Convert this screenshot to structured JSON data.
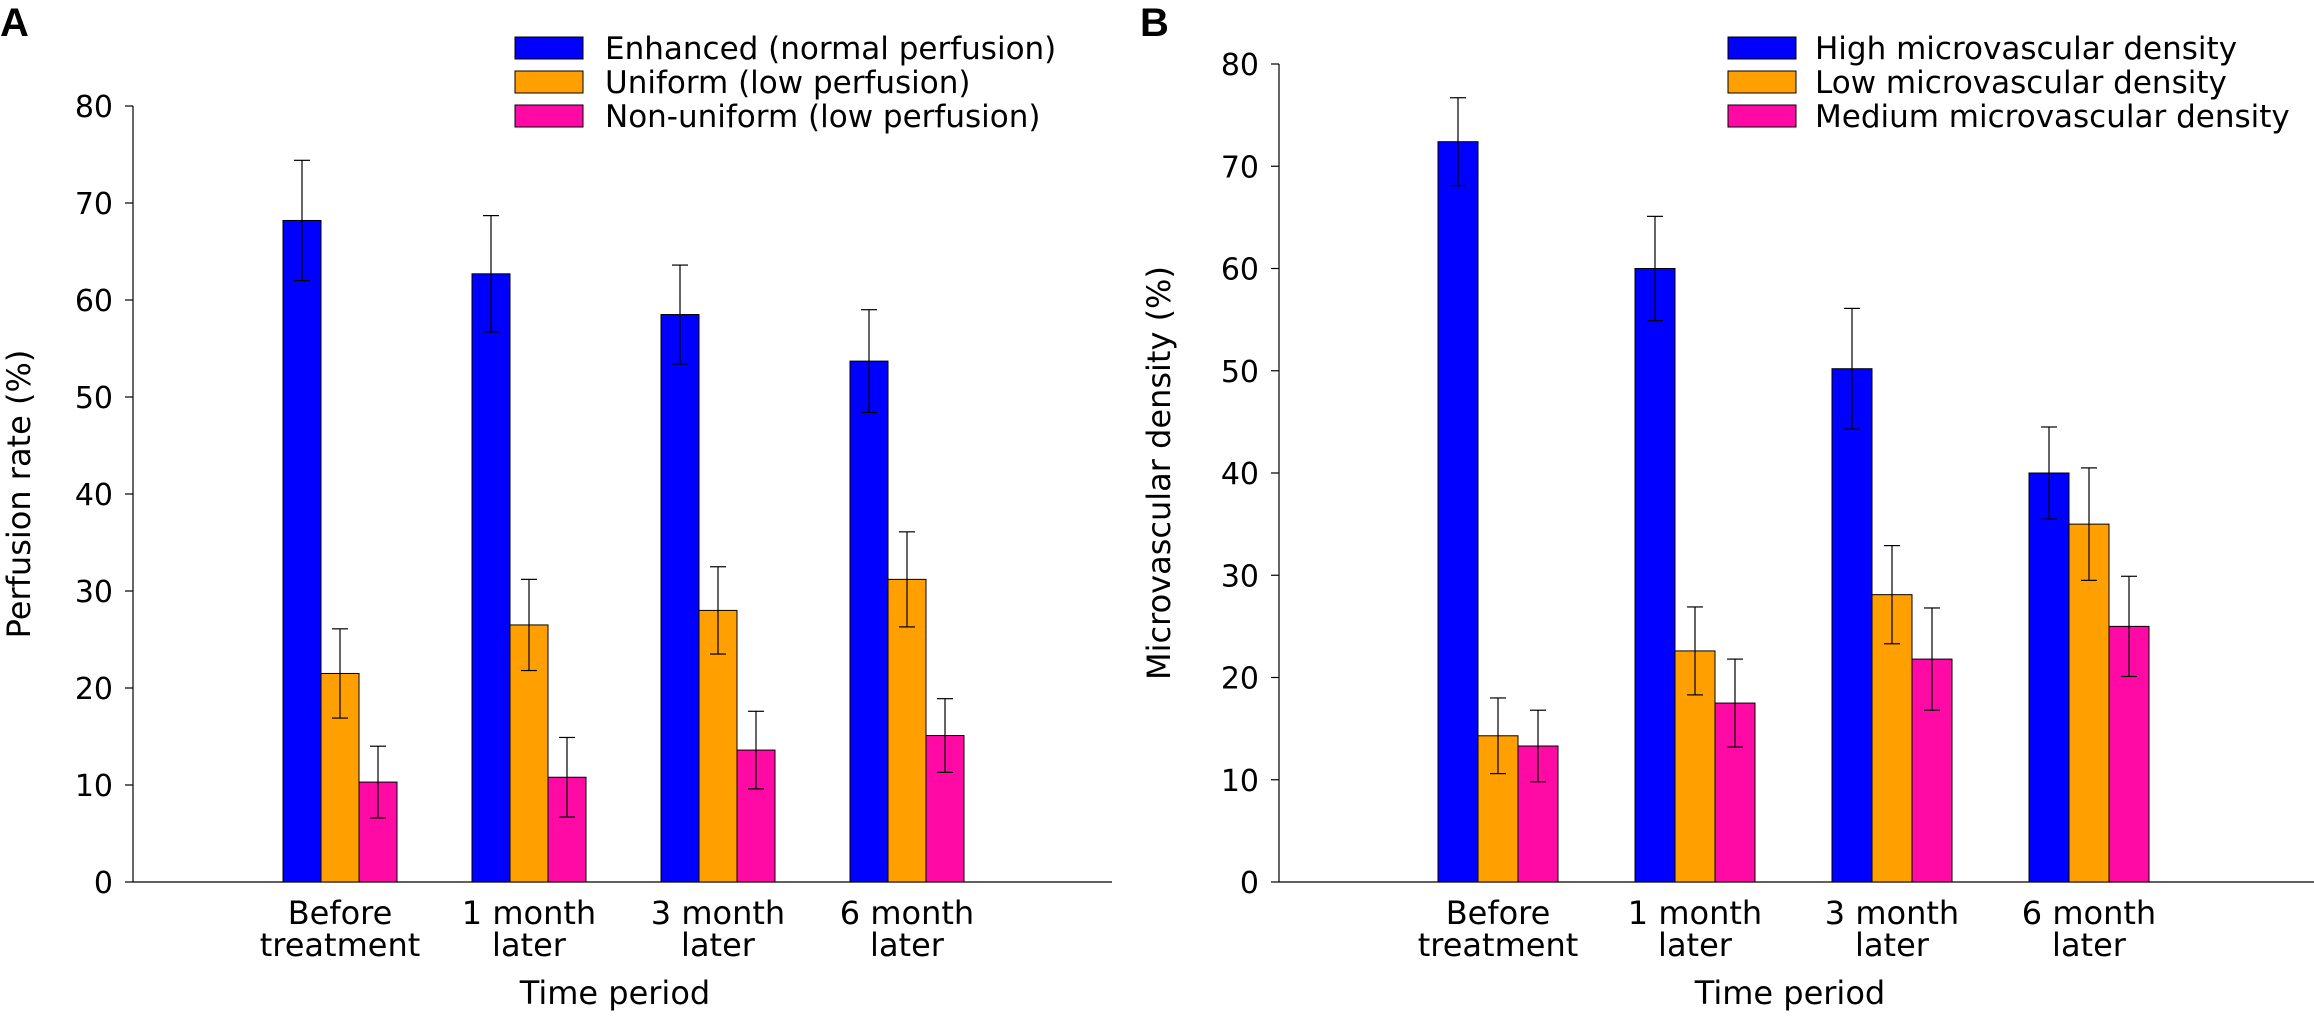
{
  "panels": [
    {
      "letter": "A",
      "chart_data": {
        "type": "bar",
        "categories": [
          [
            "Before",
            "treatment"
          ],
          [
            "1 month",
            "later"
          ],
          [
            "3 month",
            "later"
          ],
          [
            "6 month",
            "later"
          ]
        ],
        "series": [
          {
            "name": "Enhanced (normal perfusion)",
            "color": "#0000ff",
            "values": [
              68.2,
              62.7,
              58.5,
              53.7
            ],
            "errors": [
              6.2,
              6.0,
              5.1,
              5.3
            ]
          },
          {
            "name": "Uniform (low perfusion)",
            "color": "#ffa000",
            "values": [
              21.5,
              26.5,
              28.0,
              31.2
            ],
            "errors": [
              4.6,
              4.7,
              4.5,
              4.9
            ]
          },
          {
            "name": "Non-uniform (low perfusion)",
            "color": "#ff0aa5",
            "values": [
              10.3,
              10.8,
              13.6,
              15.1
            ],
            "errors": [
              3.7,
              4.1,
              4.0,
              3.8
            ]
          }
        ],
        "xlabel": "Time period",
        "ylabel": "Perfusion rate (%)",
        "ylim": [
          0,
          80
        ],
        "yticks": [
          0,
          10,
          20,
          30,
          40,
          50,
          60,
          70,
          80
        ],
        "grid": false,
        "legend": "top-right"
      }
    },
    {
      "letter": "B",
      "chart_data": {
        "type": "bar",
        "categories": [
          [
            "Before",
            "treatment"
          ],
          [
            "1 month",
            "later"
          ],
          [
            "3 month",
            "later"
          ],
          [
            "6 month",
            "later"
          ]
        ],
        "series": [
          {
            "name": "High microvascular density",
            "color": "#0000ff",
            "values": [
              72.4,
              60.0,
              50.2,
              40.0
            ],
            "errors": [
              4.3,
              5.1,
              5.9,
              4.5
            ]
          },
          {
            "name": "Low microvascular density",
            "color": "#ffa000",
            "values": [
              14.3,
              22.6,
              28.1,
              35.0
            ],
            "errors": [
              3.7,
              4.3,
              4.8,
              5.5
            ]
          },
          {
            "name": "Medium microvascular density",
            "color": "#ff0aa5",
            "values": [
              13.3,
              17.5,
              21.8,
              25.0
            ],
            "errors": [
              3.5,
              4.3,
              5.0,
              4.9
            ]
          }
        ],
        "xlabel": "Time period",
        "ylabel": "Microvascular density (%)",
        "ylim": [
          0,
          80
        ],
        "yticks": [
          0,
          10,
          20,
          30,
          40,
          50,
          60,
          70,
          80
        ],
        "grid": false,
        "legend": "top-right"
      }
    }
  ]
}
